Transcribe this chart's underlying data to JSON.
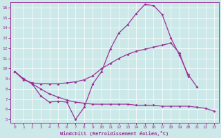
{
  "xlabel": "Windchill (Refroidissement éolien,°C)",
  "bg_color": "#cce8e8",
  "line_color": "#993399",
  "xlim": [
    -0.5,
    23.5
  ],
  "ylim": [
    4.7,
    16.5
  ],
  "xticks": [
    0,
    1,
    2,
    3,
    4,
    5,
    6,
    7,
    8,
    9,
    10,
    11,
    12,
    13,
    14,
    15,
    16,
    17,
    18,
    19,
    20,
    21,
    22,
    23
  ],
  "yticks": [
    5,
    6,
    7,
    8,
    9,
    10,
    11,
    12,
    13,
    14,
    15,
    16
  ],
  "s1": [
    9.7,
    9.0,
    8.5,
    7.3,
    6.7,
    6.8,
    6.7,
    5.0,
    6.2,
    8.5,
    9.7,
    11.9,
    13.5,
    14.3,
    15.4,
    16.3,
    16.2,
    15.3,
    13.0,
    11.3,
    9.4,
    8.2,
    null,
    null
  ],
  "s1_x": [
    0,
    1,
    2,
    3,
    4,
    5,
    6,
    7,
    8,
    9,
    10,
    11,
    12,
    13,
    14,
    15,
    16,
    17,
    18,
    19,
    20,
    21
  ],
  "s2": [
    9.7,
    8.9,
    8.6,
    8.5,
    8.5,
    8.5,
    8.6,
    8.7,
    8.9,
    9.3,
    10.0,
    10.5,
    11.0,
    11.4,
    11.7,
    11.9,
    12.1,
    12.3,
    12.5,
    11.5,
    9.2,
    null,
    null,
    null
  ],
  "s2_x": [
    0,
    1,
    2,
    3,
    4,
    5,
    6,
    7,
    8,
    9,
    10,
    11,
    12,
    13,
    14,
    15,
    16,
    17,
    18,
    19,
    20
  ],
  "s3": [
    9.7,
    9.0,
    8.5,
    8.0,
    7.5,
    7.2,
    6.9,
    6.7,
    6.6,
    6.5,
    6.5,
    6.5,
    6.5,
    6.5,
    6.4,
    6.4,
    6.4,
    6.3,
    6.3,
    6.3,
    6.3,
    6.2,
    6.1,
    5.8
  ],
  "s3_x": [
    0,
    1,
    2,
    3,
    4,
    5,
    6,
    7,
    8,
    9,
    10,
    11,
    12,
    13,
    14,
    15,
    16,
    17,
    18,
    19,
    20,
    21,
    22,
    23
  ]
}
